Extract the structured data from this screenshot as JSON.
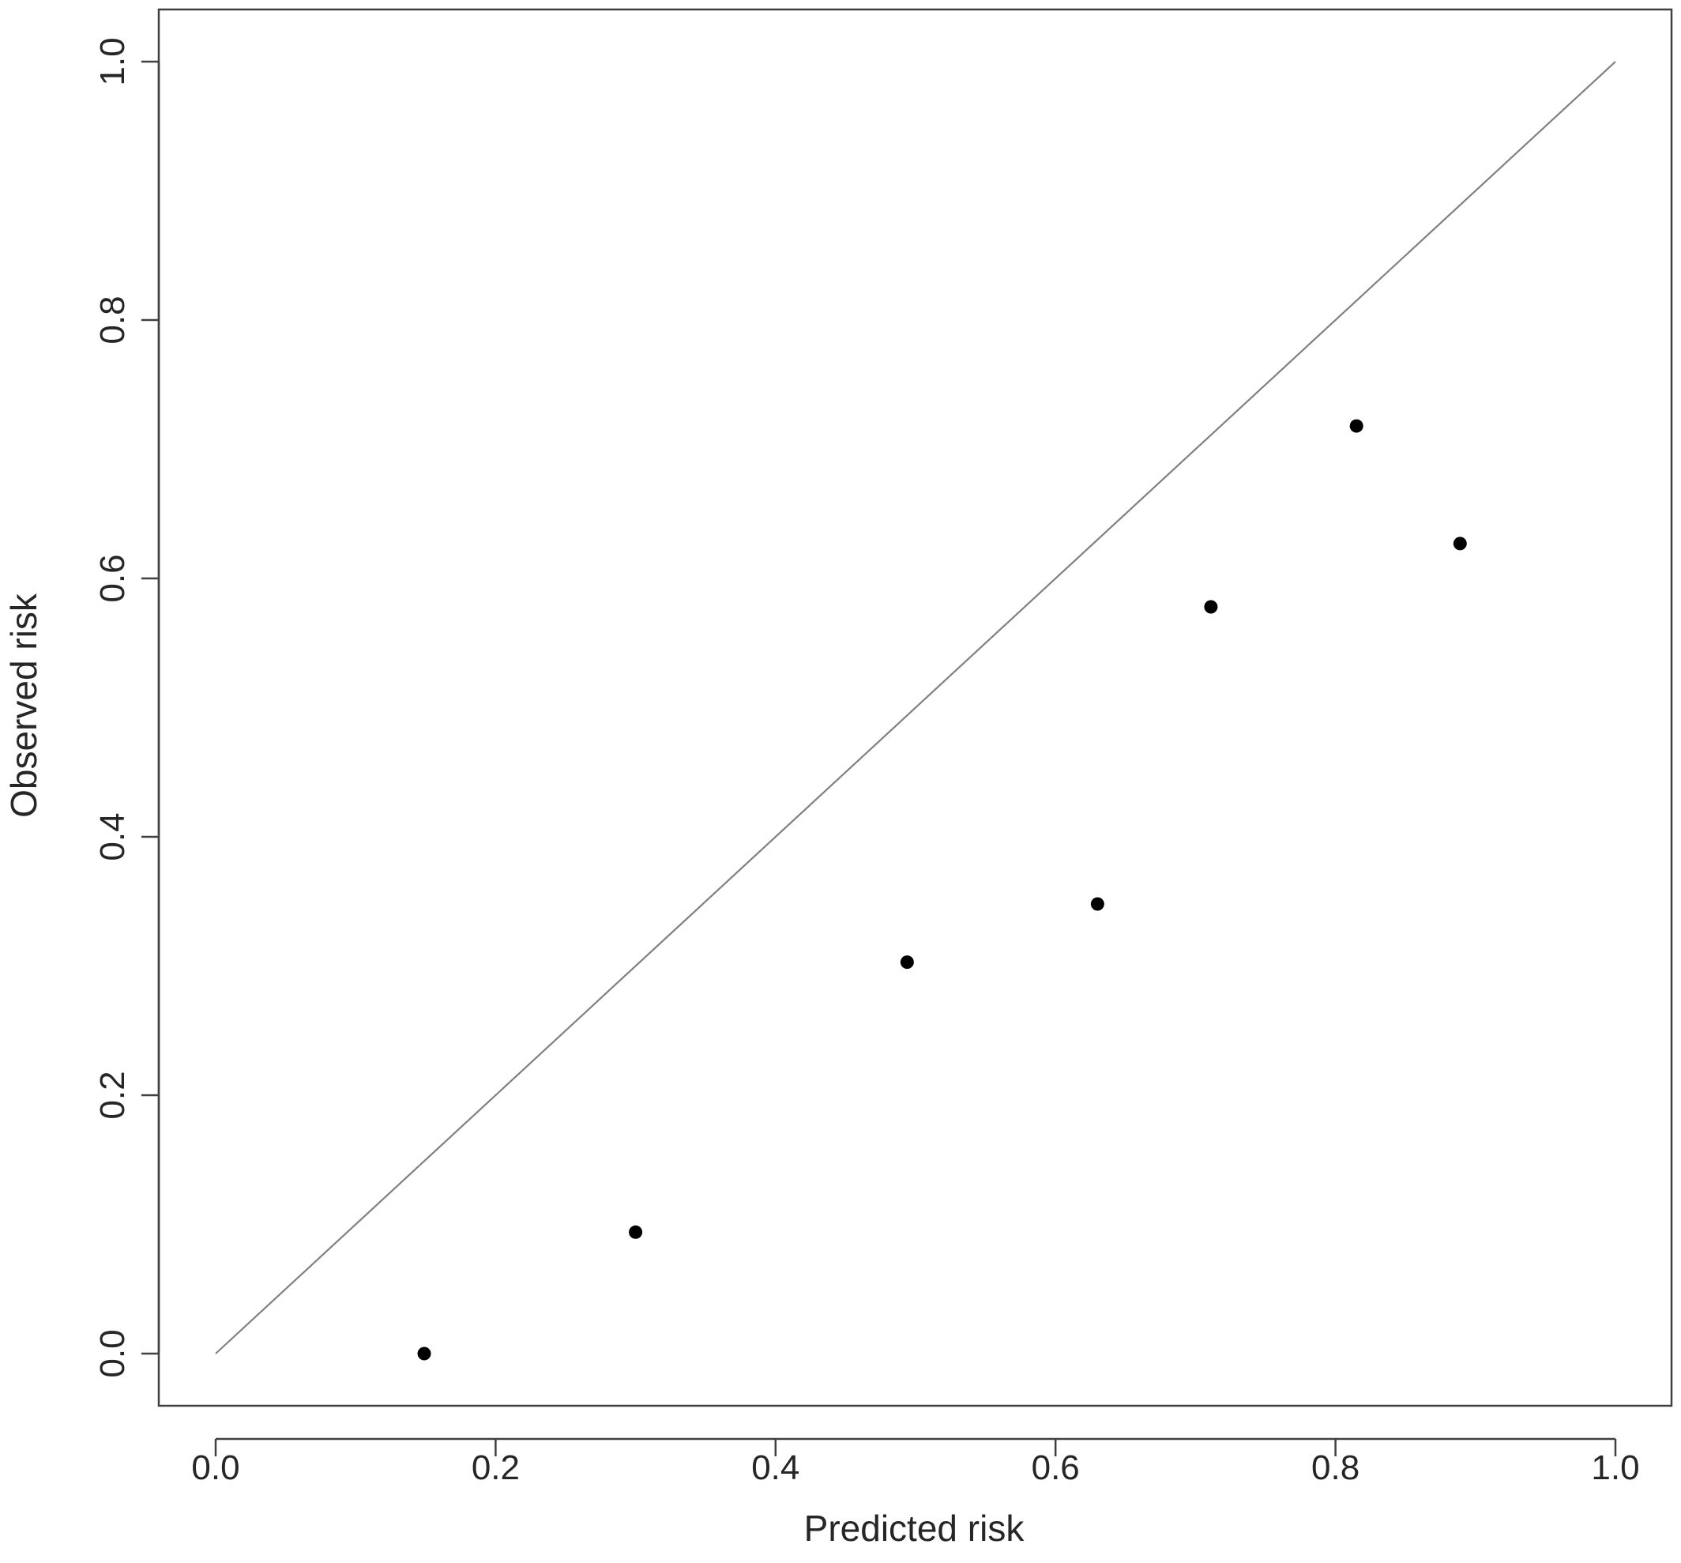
{
  "chart_data": {
    "type": "scatter",
    "title": "",
    "xlabel": "Predicted risk",
    "ylabel": "Observed risk",
    "xlim": [
      0.0,
      1.0
    ],
    "ylim": [
      0.0,
      1.0
    ],
    "x_ticks": [
      "0.0",
      "0.2",
      "0.4",
      "0.6",
      "0.8",
      "1.0"
    ],
    "y_ticks": [
      "0.0",
      "0.2",
      "0.4",
      "0.6",
      "0.8",
      "1.0"
    ],
    "grid": false,
    "legend": "none",
    "reference_line": {
      "from": [
        0.0,
        0.0
      ],
      "to": [
        1.0,
        1.0
      ],
      "color": "#808080"
    },
    "series": [
      {
        "marker": "filled-circle",
        "color": "#000000",
        "points": [
          {
            "x": 0.149,
            "y": 0.0
          },
          {
            "x": 0.3,
            "y": 0.094
          },
          {
            "x": 0.494,
            "y": 0.303
          },
          {
            "x": 0.63,
            "y": 0.348
          },
          {
            "x": 0.711,
            "y": 0.578
          },
          {
            "x": 0.815,
            "y": 0.718
          },
          {
            "x": 0.889,
            "y": 0.627
          }
        ]
      }
    ]
  }
}
